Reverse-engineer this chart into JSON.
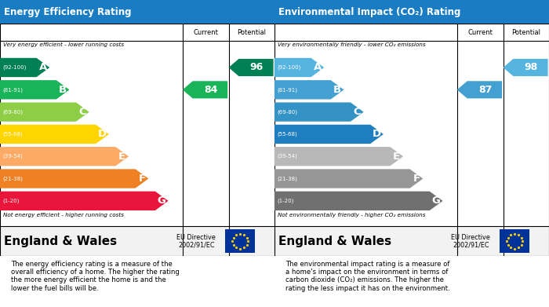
{
  "panels": [
    {
      "title": "Energy Efficiency Rating",
      "top_label": "Very energy efficient - lower running costs",
      "bottom_label": "Not energy efficient - higher running costs",
      "bands": [
        {
          "range": "(92-100)",
          "letter": "A",
          "color": "#008054"
        },
        {
          "range": "(81-91)",
          "letter": "B",
          "color": "#19b459"
        },
        {
          "range": "(69-80)",
          "letter": "C",
          "color": "#8dce46"
        },
        {
          "range": "(55-68)",
          "letter": "D",
          "color": "#ffd500"
        },
        {
          "range": "(39-54)",
          "letter": "E",
          "color": "#fcaa65"
        },
        {
          "range": "(21-38)",
          "letter": "F",
          "color": "#ef8023"
        },
        {
          "range": "(1-20)",
          "letter": "G",
          "color": "#e9153b"
        }
      ],
      "current_value": "84",
      "current_band": 1,
      "current_color": "#19b459",
      "potential_value": "96",
      "potential_band": 0,
      "potential_color": "#008054",
      "description": "The energy efficiency rating is a measure of the\noverall efficiency of a home. The higher the rating\nthe more energy efficient the home is and the\nlower the fuel bills will be."
    },
    {
      "title": "Environmental Impact (CO₂) Rating",
      "top_label": "Very environmentally friendly - lower CO₂ emissions",
      "bottom_label": "Not environmentally friendly - higher CO₂ emissions",
      "bands": [
        {
          "range": "(92-100)",
          "letter": "A",
          "color": "#55b5e0"
        },
        {
          "range": "(81-91)",
          "letter": "B",
          "color": "#45a0d2"
        },
        {
          "range": "(69-80)",
          "letter": "C",
          "color": "#3592c4"
        },
        {
          "range": "(55-68)",
          "letter": "D",
          "color": "#1f7ebf"
        },
        {
          "range": "(39-54)",
          "letter": "E",
          "color": "#b8b8b8"
        },
        {
          "range": "(21-38)",
          "letter": "F",
          "color": "#969696"
        },
        {
          "range": "(1-20)",
          "letter": "G",
          "color": "#707070"
        }
      ],
      "current_value": "87",
      "current_band": 1,
      "current_color": "#45a0d2",
      "potential_value": "98",
      "potential_band": 0,
      "potential_color": "#55b5e0",
      "description": "The environmental impact rating is a measure of\na home's impact on the environment in terms of\ncarbon dioxide (CO₂) emissions. The higher the\nrating the less impact it has on the environment."
    }
  ],
  "title_bg": "#1a7dc4",
  "title_color": "#ffffff",
  "footer_label": "England & Wales",
  "eu_directive": "EU Directive\n2002/91/EC",
  "eu_flag_bg": "#003399",
  "eu_star_color": "#ffcc00"
}
